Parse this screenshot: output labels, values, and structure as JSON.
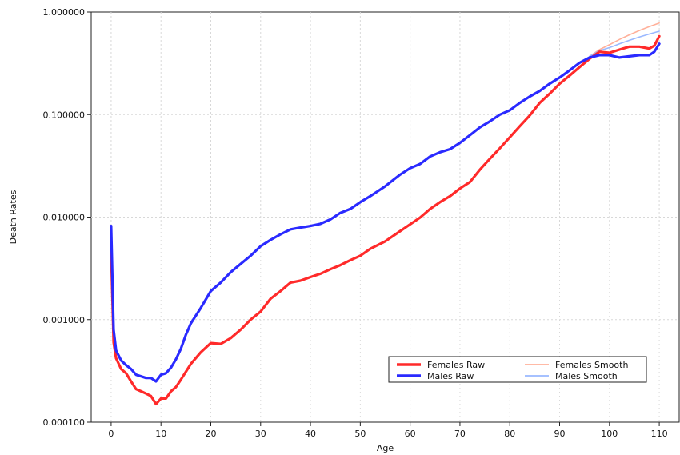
{
  "chart_data": {
    "type": "line",
    "title": "",
    "xlabel": "Age",
    "ylabel": "Death Rates",
    "x_scale": "linear",
    "y_scale": "log",
    "xlim": [
      -4,
      114
    ],
    "ylim": [
      0.0001,
      1
    ],
    "x_ticks": [
      0,
      10,
      20,
      30,
      40,
      50,
      60,
      70,
      80,
      90,
      100,
      110
    ],
    "x_tick_labels": [
      "0",
      "10",
      "20",
      "30",
      "40",
      "50",
      "60",
      "70",
      "80",
      "90",
      "100",
      "110"
    ],
    "y_ticks": [
      0.0001,
      0.001,
      0.01,
      0.1,
      1
    ],
    "y_tick_labels": [
      "0.000100",
      "0.001000",
      "0.010000",
      "0.100000",
      "1.000000"
    ],
    "grid": true,
    "legend_position": "bottom-right",
    "series": [
      {
        "name": "Females Raw",
        "color": "#ff2a2a",
        "style": "thick",
        "x": [
          0,
          0.5,
          1,
          2,
          3,
          4,
          5,
          6,
          7,
          8,
          9,
          10,
          11,
          12,
          13,
          14,
          15,
          16,
          18,
          20,
          22,
          24,
          26,
          28,
          30,
          32,
          34,
          36,
          38,
          40,
          42,
          44,
          46,
          48,
          50,
          52,
          55,
          58,
          60,
          62,
          64,
          66,
          68,
          70,
          72,
          74,
          76,
          78,
          80,
          82,
          84,
          86,
          88,
          90,
          92,
          94,
          96,
          98,
          100,
          102,
          104,
          106,
          108,
          109,
          110
        ],
        "y": [
          0.0048,
          0.0006,
          0.00042,
          0.00033,
          0.0003,
          0.00025,
          0.00021,
          0.0002,
          0.00019,
          0.00018,
          0.00015,
          0.00017,
          0.00017,
          0.0002,
          0.00022,
          0.00026,
          0.00031,
          0.00037,
          0.00048,
          0.00059,
          0.00058,
          0.00066,
          0.0008,
          0.001,
          0.0012,
          0.0016,
          0.0019,
          0.0023,
          0.0024,
          0.0026,
          0.0028,
          0.0031,
          0.0034,
          0.0038,
          0.0042,
          0.0049,
          0.0058,
          0.0073,
          0.0085,
          0.0099,
          0.012,
          0.014,
          0.016,
          0.019,
          0.022,
          0.029,
          0.037,
          0.047,
          0.06,
          0.077,
          0.098,
          0.13,
          0.16,
          0.2,
          0.24,
          0.29,
          0.35,
          0.41,
          0.4,
          0.43,
          0.46,
          0.46,
          0.44,
          0.47,
          0.58
        ]
      },
      {
        "name": "Males Raw",
        "color": "#2a2aff",
        "style": "thick",
        "x": [
          0,
          0.5,
          1,
          2,
          3,
          4,
          5,
          6,
          7,
          8,
          9,
          10,
          11,
          12,
          13,
          14,
          15,
          16,
          18,
          20,
          22,
          24,
          26,
          28,
          30,
          32,
          34,
          36,
          38,
          40,
          42,
          44,
          46,
          48,
          50,
          52,
          55,
          58,
          60,
          62,
          64,
          66,
          68,
          70,
          72,
          74,
          76,
          78,
          80,
          82,
          84,
          86,
          88,
          90,
          92,
          94,
          96,
          98,
          100,
          102,
          104,
          106,
          108,
          109,
          110
        ],
        "y": [
          0.0082,
          0.0008,
          0.0005,
          0.0004,
          0.00036,
          0.00033,
          0.00029,
          0.00028,
          0.00027,
          0.00027,
          0.00025,
          0.00029,
          0.0003,
          0.00034,
          0.00041,
          0.00052,
          0.00071,
          0.00092,
          0.0013,
          0.0019,
          0.0023,
          0.0029,
          0.0035,
          0.0042,
          0.0052,
          0.006,
          0.0068,
          0.0076,
          0.0079,
          0.0082,
          0.0086,
          0.0095,
          0.011,
          0.012,
          0.014,
          0.016,
          0.02,
          0.026,
          0.03,
          0.033,
          0.039,
          0.043,
          0.046,
          0.053,
          0.063,
          0.075,
          0.086,
          0.1,
          0.11,
          0.13,
          0.15,
          0.17,
          0.2,
          0.23,
          0.27,
          0.32,
          0.36,
          0.38,
          0.38,
          0.36,
          0.37,
          0.38,
          0.38,
          0.41,
          0.49
        ]
      },
      {
        "name": "Females Smooth",
        "color": "#ffb09a",
        "style": "thin",
        "x": [
          96,
          98,
          100,
          102,
          104,
          106,
          108,
          110
        ],
        "y": [
          0.37,
          0.43,
          0.48,
          0.54,
          0.6,
          0.66,
          0.72,
          0.78
        ]
      },
      {
        "name": "Males Smooth",
        "color": "#9ab8ff",
        "style": "thin",
        "x": [
          96,
          98,
          100,
          102,
          104,
          106,
          108,
          110
        ],
        "y": [
          0.37,
          0.42,
          0.45,
          0.49,
          0.53,
          0.57,
          0.61,
          0.65
        ]
      }
    ]
  }
}
